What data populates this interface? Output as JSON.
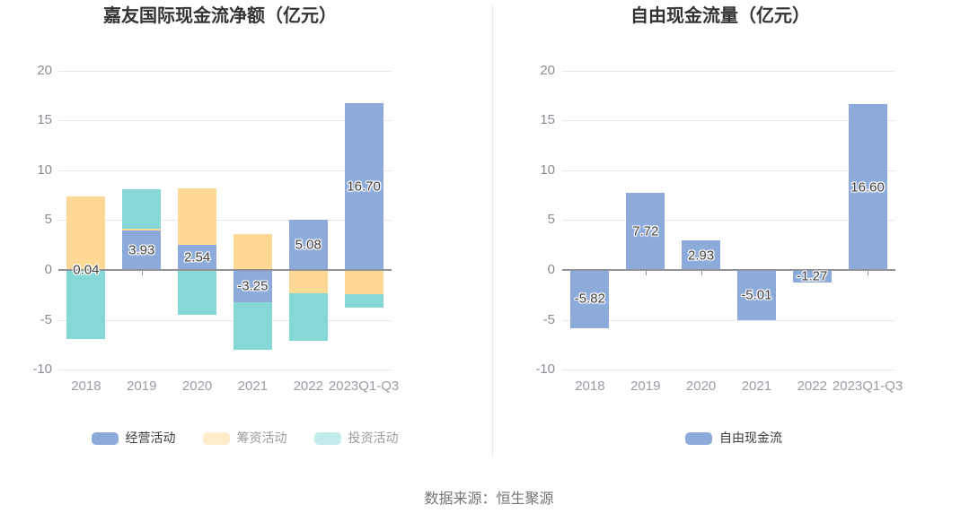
{
  "chart_data": [
    {
      "type": "bar",
      "stacked": true,
      "title": "嘉友国际现金流净额（亿元）",
      "categories": [
        "2018",
        "2019",
        "2020",
        "2021",
        "2022",
        "2023Q1-Q3"
      ],
      "series": [
        {
          "name": "经营活动",
          "color": "#8cabdb",
          "values": [
            0.04,
            3.93,
            2.54,
            -3.25,
            5.08,
            16.7
          ],
          "labels": [
            "0.04",
            "3.93",
            "2.54",
            "-3.25",
            "5.08",
            "16.70"
          ],
          "labeled": true,
          "legend_dimmed": false
        },
        {
          "name": "筹资活动",
          "color": "#fdd995",
          "values": [
            7.3,
            0.2,
            5.6,
            3.6,
            -2.3,
            -2.4
          ],
          "labeled": false,
          "legend_dimmed": true
        },
        {
          "name": "投资活动",
          "color": "#85d8d5",
          "values": [
            -6.95,
            4.0,
            -4.5,
            -4.75,
            -4.8,
            -1.4
          ],
          "labeled": false,
          "legend_dimmed": true
        }
      ],
      "ylim": [
        -10,
        20
      ],
      "yticks": [
        20,
        15,
        10,
        5,
        0,
        -5,
        -10
      ],
      "legend_position": "bottom",
      "grid": true
    },
    {
      "type": "bar",
      "stacked": false,
      "title": "自由现金流量（亿元）",
      "categories": [
        "2018",
        "2019",
        "2020",
        "2021",
        "2022",
        "2023Q1-Q3"
      ],
      "series": [
        {
          "name": "自由现金流",
          "color": "#8cabdb",
          "values": [
            -5.82,
            7.72,
            2.93,
            -5.01,
            -1.27,
            16.6
          ],
          "labels": [
            "-5.82",
            "7.72",
            "2.93",
            "-5.01",
            "-1.27",
            "16.60"
          ],
          "labeled": true,
          "legend_dimmed": false
        }
      ],
      "ylim": [
        -10,
        20
      ],
      "yticks": [
        20,
        15,
        10,
        5,
        0,
        -5,
        -10
      ],
      "legend_position": "bottom",
      "grid": true
    }
  ],
  "style_colors": {
    "bar_blue": "#8cabdb",
    "bar_orange": "#fdd995",
    "bar_teal": "#85d8d5",
    "gridline": "#e3e8f2",
    "zero_axis": "#8f9298",
    "axis_label": "#8a8d95",
    "title_text": "#333333",
    "data_label": "#404040",
    "dimmed_legend_label": "#9b9b9b",
    "source_text": "#737373",
    "divider": "#e8e8f0"
  },
  "footer": {
    "source_note": "数据来源：恒生聚源"
  }
}
